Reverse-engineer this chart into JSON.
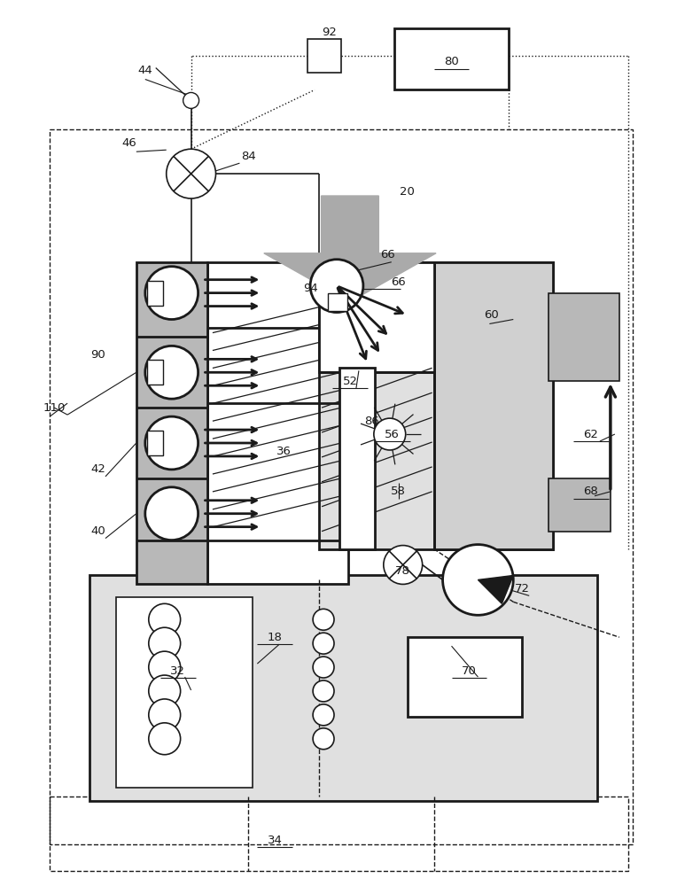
{
  "bg": "#ffffff",
  "black": "#1a1a1a",
  "gray_arrow": "#aaaaaa",
  "light_gray": "#d0d0d0",
  "dot_fill": "#e0e0e0",
  "med_gray": "#b8b8b8",
  "dark_gray": "#888888"
}
